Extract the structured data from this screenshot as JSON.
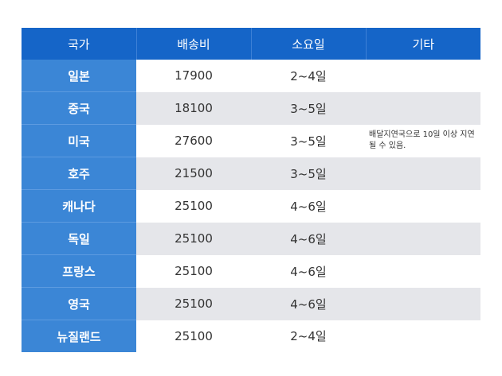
{
  "table": {
    "headers": [
      "국가",
      "배송비",
      "소요일",
      "기타"
    ],
    "rows": [
      {
        "country": "일본",
        "fee": "17900",
        "days": "2~4일",
        "note": ""
      },
      {
        "country": "중국",
        "fee": "18100",
        "days": "3~5일",
        "note": ""
      },
      {
        "country": "미국",
        "fee": "27600",
        "days": "3~5일",
        "note": "배달지연국으로 10일 이상 지연될 수 있음."
      },
      {
        "country": "호주",
        "fee": "21500",
        "days": "3~5일",
        "note": ""
      },
      {
        "country": "캐나다",
        "fee": "25100",
        "days": "4~6일",
        "note": ""
      },
      {
        "country": "독일",
        "fee": "25100",
        "days": "4~6일",
        "note": ""
      },
      {
        "country": "프랑스",
        "fee": "25100",
        "days": "4~6일",
        "note": ""
      },
      {
        "country": "영국",
        "fee": "25100",
        "days": "4~6일",
        "note": ""
      },
      {
        "country": "뉴질랜드",
        "fee": "25100",
        "days": "2~4일",
        "note": ""
      }
    ]
  },
  "colors": {
    "header_bg": "#1565c8",
    "country_bg": "#3b86d6",
    "stripe_bg": "#e5e6ea"
  }
}
